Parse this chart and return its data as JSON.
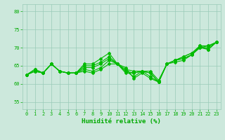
{
  "background_color": "#cce8dc",
  "grid_color": "#99cbb8",
  "line_color": "#00bb00",
  "xlabel": "Humidité relative (%)",
  "xlabel_color": "#00aa00",
  "tick_color": "#00aa00",
  "ylim": [
    53,
    82
  ],
  "yticks": [
    55,
    60,
    65,
    70,
    75,
    80
  ],
  "xlim": [
    -0.5,
    23.5
  ],
  "xticks": [
    0,
    1,
    2,
    3,
    4,
    5,
    6,
    7,
    8,
    9,
    10,
    11,
    12,
    13,
    14,
    15,
    16,
    17,
    18,
    19,
    20,
    21,
    22,
    23
  ],
  "series": [
    [
      62.5,
      64.0,
      63.0,
      65.5,
      63.5,
      63.0,
      63.0,
      63.5,
      63.0,
      64.0,
      65.5,
      65.5,
      63.0,
      63.0,
      63.5,
      63.0,
      60.5,
      65.5,
      66.0,
      66.5,
      68.0,
      70.5,
      69.5,
      71.5
    ],
    [
      62.5,
      63.5,
      63.0,
      65.5,
      63.5,
      63.0,
      63.0,
      65.0,
      65.0,
      66.0,
      67.5,
      65.5,
      64.0,
      63.5,
      63.5,
      63.5,
      61.0,
      65.5,
      66.5,
      67.0,
      68.0,
      70.0,
      70.0,
      71.5
    ],
    [
      62.5,
      63.5,
      63.0,
      65.5,
      63.5,
      63.0,
      63.0,
      65.5,
      65.5,
      67.0,
      68.5,
      65.5,
      64.5,
      61.5,
      63.0,
      61.5,
      60.5,
      65.5,
      66.5,
      67.5,
      68.5,
      70.0,
      70.5,
      71.5
    ],
    [
      62.5,
      64.0,
      63.0,
      65.5,
      63.5,
      63.0,
      63.0,
      64.0,
      63.5,
      64.5,
      66.5,
      65.5,
      63.5,
      63.0,
      63.5,
      63.0,
      60.5,
      65.5,
      66.5,
      67.0,
      68.0,
      70.0,
      69.5,
      71.5
    ],
    [
      62.5,
      63.5,
      63.0,
      65.5,
      63.5,
      63.0,
      63.0,
      64.5,
      64.5,
      65.5,
      67.0,
      65.5,
      63.5,
      62.0,
      63.5,
      62.0,
      60.5,
      65.5,
      66.5,
      67.5,
      68.5,
      70.5,
      70.5,
      71.5
    ]
  ],
  "marker": "D",
  "markersize": 2.0,
  "linewidth": 0.8
}
